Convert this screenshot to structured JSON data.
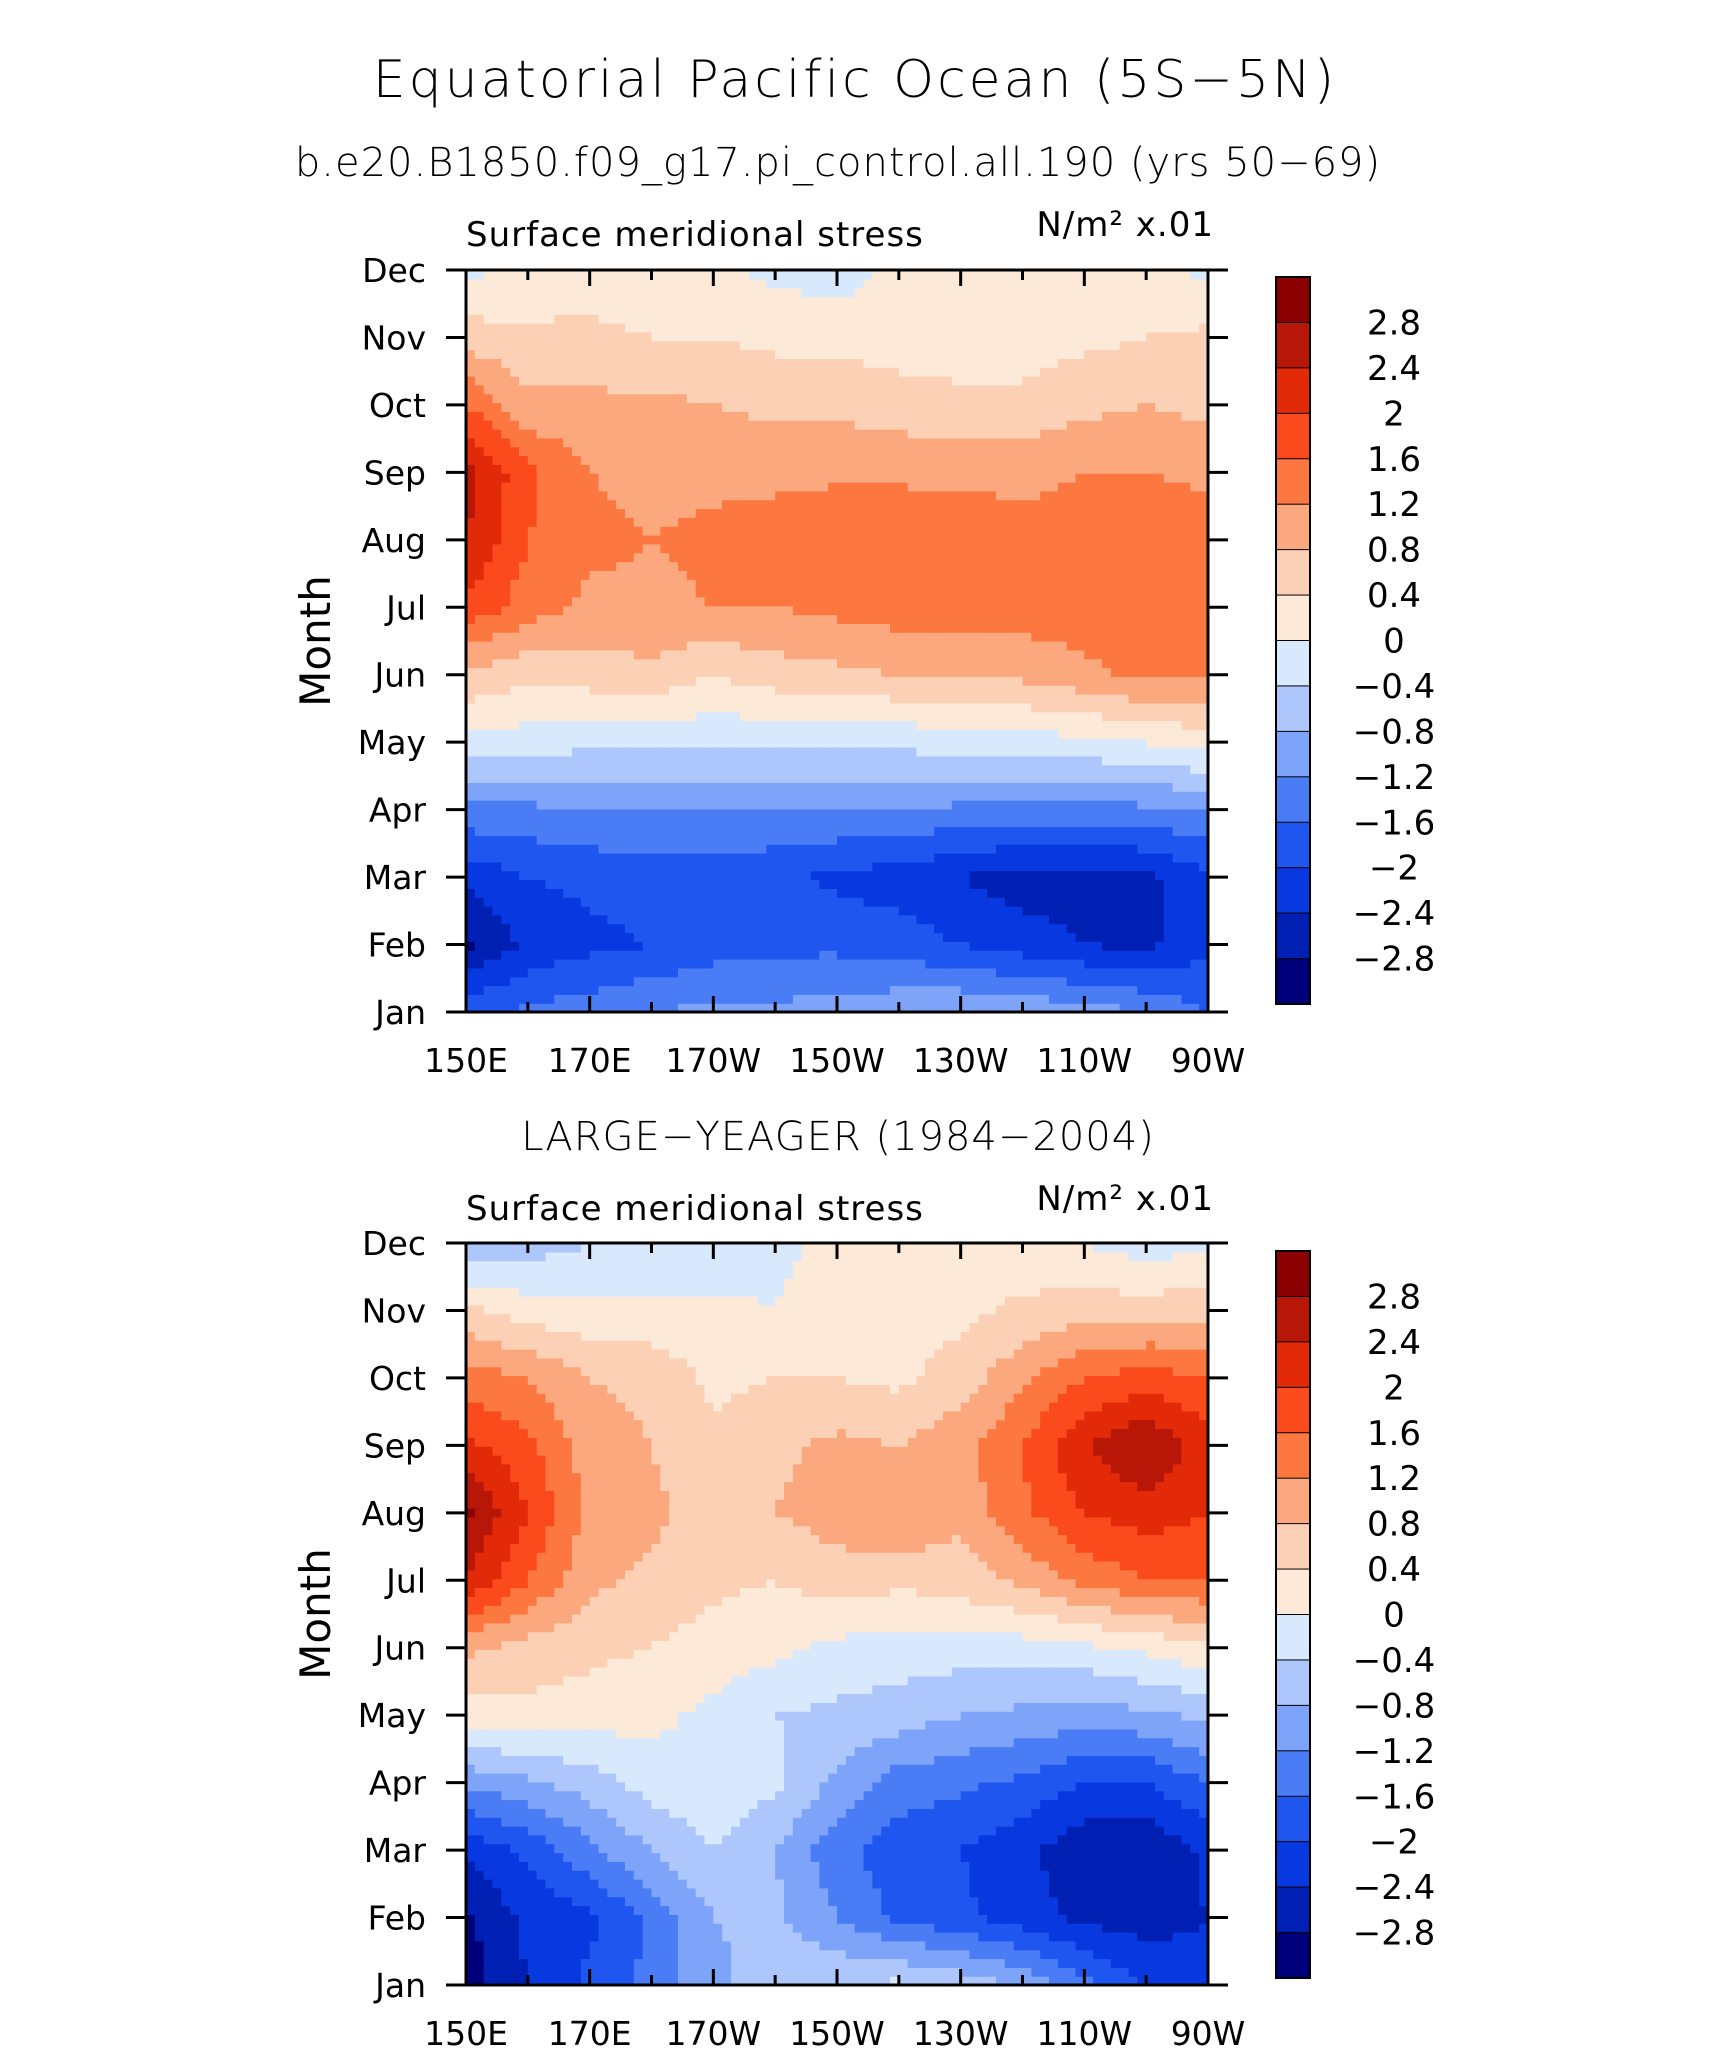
{
  "figure": {
    "title": "Equatorial Pacific Ocean (5S−5N)",
    "subtitle": "b.e20.B1850.f09_g17.pi_control.all.190 (yrs 50−69)"
  },
  "chart_data": [
    {
      "type": "heatmap",
      "name": "model",
      "panel_title": "",
      "left_label": "Surface meridional stress",
      "right_label": "N/m² x.01",
      "xlabel": "",
      "ylabel": "Month",
      "x_tick_labels": [
        "150E",
        "170E",
        "170W",
        "150W",
        "130W",
        "110W",
        "90W"
      ],
      "x": [
        150,
        160,
        170,
        180,
        190,
        200,
        210,
        220,
        230,
        240,
        250,
        260,
        270
      ],
      "y_tick_labels": [
        "Jan",
        "Feb",
        "Mar",
        "Apr",
        "May",
        "Jun",
        "Jul",
        "Aug",
        "Sep",
        "Oct",
        "Nov",
        "Dec"
      ],
      "y": [
        "Jan",
        "Feb",
        "Mar",
        "Apr",
        "May",
        "Jun",
        "Jul",
        "Aug",
        "Sep",
        "Oct",
        "Nov",
        "Dec"
      ],
      "z": [
        [
          -1.7,
          -1.5,
          -1.4,
          -1.2,
          -1.1,
          -1.1,
          -1.0,
          -0.9,
          -0.8,
          -0.9,
          -1.0,
          -1.2,
          -1.6
        ],
        [
          -2.9,
          -2.3,
          -2.1,
          -2.0,
          -1.8,
          -1.7,
          -1.7,
          -1.8,
          -2.0,
          -2.2,
          -2.4,
          -2.5,
          -2.1
        ],
        [
          -2.3,
          -2.0,
          -1.9,
          -1.8,
          -1.8,
          -1.9,
          -2.1,
          -2.2,
          -2.4,
          -2.6,
          -2.6,
          -2.5,
          -2.1
        ],
        [
          -1.3,
          -1.3,
          -1.2,
          -1.2,
          -1.2,
          -1.2,
          -1.2,
          -1.2,
          -1.3,
          -1.3,
          -1.3,
          -1.3,
          -1.2
        ],
        [
          -0.1,
          -0.2,
          -0.3,
          -0.3,
          -0.3,
          -0.3,
          -0.3,
          -0.3,
          -0.2,
          -0.2,
          -0.1,
          0.0,
          0.2
        ],
        [
          0.7,
          0.5,
          0.6,
          0.7,
          0.4,
          0.6,
          0.7,
          0.8,
          0.8,
          0.9,
          1.1,
          1.3,
          1.2
        ],
        [
          1.9,
          1.4,
          1.1,
          1.1,
          1.2,
          1.2,
          1.3,
          1.4,
          1.4,
          1.4,
          1.4,
          1.4,
          1.4
        ],
        [
          2.4,
          1.6,
          1.3,
          1.2,
          1.3,
          1.4,
          1.6,
          1.6,
          1.5,
          1.3,
          1.4,
          1.6,
          1.4
        ],
        [
          2.6,
          1.7,
          1.2,
          1.1,
          1.1,
          1.1,
          1.1,
          1.1,
          1.1,
          1.1,
          1.2,
          1.2,
          1.1
        ],
        [
          1.6,
          0.9,
          0.9,
          0.9,
          0.8,
          0.7,
          0.7,
          0.6,
          0.5,
          0.5,
          0.7,
          0.8,
          0.7
        ],
        [
          0.6,
          0.5,
          0.5,
          0.4,
          0.4,
          0.3,
          0.3,
          0.2,
          0.2,
          0.2,
          0.3,
          0.4,
          0.5
        ],
        [
          -0.1,
          0.1,
          0.2,
          0.1,
          0.1,
          -0.1,
          -0.2,
          0.1,
          0.2,
          0.1,
          0.1,
          0.1,
          -0.1
        ]
      ],
      "colorbar_levels": [
        -2.8,
        -2.4,
        -2,
        -1.6,
        -1.2,
        -0.8,
        -0.4,
        0,
        0.4,
        0.8,
        1.2,
        1.6,
        2,
        2.4,
        2.8
      ],
      "colorbar_labels": [
        "2.8",
        "2.4",
        "2",
        "1.6",
        "1.2",
        "0.8",
        "0.4",
        "0",
        "−0.4",
        "−0.8",
        "−1.2",
        "−1.6",
        "−2",
        "−2.4",
        "−2.8"
      ]
    },
    {
      "type": "heatmap",
      "name": "observations",
      "panel_title": "LARGE−YEAGER (1984−2004)",
      "left_label": "Surface meridional stress",
      "right_label": "N/m² x.01",
      "xlabel": "",
      "ylabel": "Month",
      "x_tick_labels": [
        "150E",
        "170E",
        "170W",
        "150W",
        "130W",
        "110W",
        "90W"
      ],
      "x": [
        150,
        160,
        170,
        180,
        190,
        200,
        210,
        220,
        230,
        240,
        250,
        260,
        270
      ],
      "y_tick_labels": [
        "Jan",
        "Feb",
        "Mar",
        "Apr",
        "May",
        "Jun",
        "Jul",
        "Aug",
        "Sep",
        "Oct",
        "Nov",
        "Dec"
      ],
      "y": [
        "Jan",
        "Feb",
        "Mar",
        "Apr",
        "May",
        "Jun",
        "Jul",
        "Aug",
        "Sep",
        "Oct",
        "Nov",
        "Dec"
      ],
      "z": [
        [
          -3.0,
          -2.4,
          -1.9,
          -1.5,
          -0.9,
          -0.6,
          -0.4,
          -0.3,
          -0.5,
          -0.9,
          -1.5,
          -2.0,
          -2.2
        ],
        [
          -2.9,
          -2.3,
          -2.1,
          -1.5,
          -0.8,
          -0.7,
          -1.2,
          -1.7,
          -1.9,
          -2.2,
          -2.5,
          -2.6,
          -2.4
        ],
        [
          -2.3,
          -1.9,
          -1.3,
          -0.8,
          -0.4,
          -0.8,
          -1.5,
          -1.8,
          -2.0,
          -2.3,
          -2.7,
          -2.8,
          -2.3
        ],
        [
          -1.1,
          -0.9,
          -0.6,
          -0.2,
          -0.1,
          -0.3,
          -0.9,
          -1.4,
          -1.5,
          -1.7,
          -2.0,
          -2.0,
          -1.6
        ],
        [
          0.2,
          0.3,
          0.2,
          0.1,
          -0.1,
          -0.4,
          -0.5,
          -0.6,
          -0.8,
          -0.9,
          -1.0,
          -0.9,
          -0.7
        ],
        [
          0.9,
          0.6,
          0.5,
          0.4,
          0.2,
          0.1,
          -0.1,
          -0.2,
          -0.2,
          -0.2,
          -0.1,
          0.1,
          0.3
        ],
        [
          2.4,
          1.6,
          0.9,
          0.7,
          0.5,
          0.4,
          0.6,
          0.5,
          0.6,
          0.9,
          1.3,
          1.6,
          1.6
        ],
        [
          2.9,
          2.0,
          1.1,
          0.9,
          0.6,
          0.8,
          1.0,
          1.2,
          0.9,
          1.5,
          2.0,
          2.2,
          2.0
        ],
        [
          2.1,
          1.7,
          1.0,
          0.8,
          0.5,
          0.7,
          0.9,
          0.8,
          1.1,
          1.6,
          2.4,
          2.8,
          2.2
        ],
        [
          1.4,
          1.2,
          0.8,
          0.7,
          0.3,
          0.4,
          0.4,
          0.3,
          0.6,
          1.1,
          1.6,
          1.8,
          1.6
        ],
        [
          0.5,
          0.2,
          0.1,
          0.1,
          0.1,
          0.0,
          0.3,
          0.2,
          0.3,
          0.5,
          0.6,
          0.6,
          0.7
        ],
        [
          -0.7,
          -0.6,
          -0.4,
          -0.3,
          -0.3,
          -0.1,
          0.1,
          0.0,
          0.1,
          0.1,
          0.0,
          -0.2,
          -0.1
        ]
      ],
      "colorbar_levels": [
        -2.8,
        -2.4,
        -2,
        -1.6,
        -1.2,
        -0.8,
        -0.4,
        0,
        0.4,
        0.8,
        1.2,
        1.6,
        2,
        2.4,
        2.8
      ],
      "colorbar_labels": [
        "2.8",
        "2.4",
        "2",
        "1.6",
        "1.2",
        "0.8",
        "0.4",
        "0",
        "−0.4",
        "−0.8",
        "−1.2",
        "−1.6",
        "−2",
        "−2.4",
        "−2.8"
      ]
    }
  ],
  "colors": {
    "palette": [
      "#00007a",
      "#0020b4",
      "#0838e0",
      "#2056f0",
      "#4a7cf5",
      "#7ea4fa",
      "#adc6fc",
      "#d8e8fd",
      "#fde9d8",
      "#fcd0b4",
      "#fca87e",
      "#fc7840",
      "#fb4a1c",
      "#e22a08",
      "#b81606",
      "#8b0000"
    ]
  }
}
